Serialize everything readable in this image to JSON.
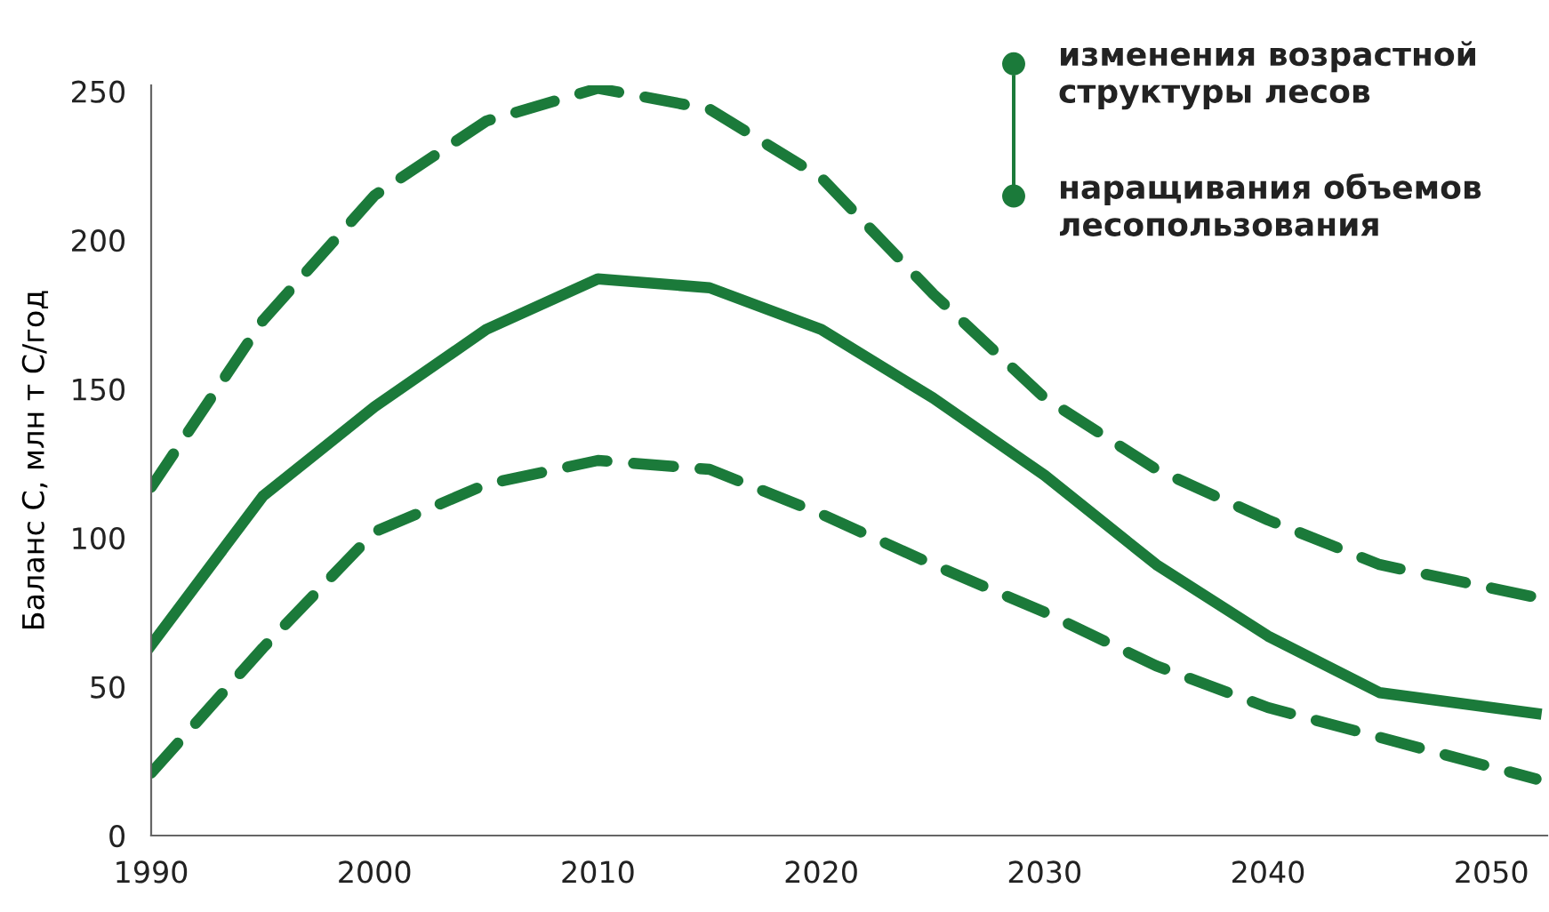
{
  "chart_data": {
    "type": "line",
    "ylabel": "Баланс С, млн т С/год",
    "x": [
      1990,
      1995,
      2000,
      2005,
      2010,
      2015,
      2020,
      2025,
      2030,
      2035,
      2040,
      2045,
      2052
    ],
    "series": [
      {
        "color": "#1b7a3a",
        "line_style": "dashed",
        "values": [
          117,
          173,
          215,
          240,
          251,
          244,
          221,
          182,
          147,
          123,
          106,
          91,
          80
        ]
      },
      {
        "color": "#1b7a3a",
        "line_style": "solid",
        "values": [
          64,
          114,
          144,
          170,
          187,
          184,
          170,
          147,
          121,
          91,
          67,
          48,
          41
        ]
      },
      {
        "color": "#1b7a3a",
        "line_style": "dashed",
        "values": [
          21,
          63,
          102,
          118,
          126,
          123,
          108,
          91,
          75,
          57,
          43,
          33,
          19
        ]
      }
    ],
    "xlim": [
      1990,
      2052.5
    ],
    "ylim": [
      0,
      252
    ],
    "xticks": [
      1990,
      2000,
      2010,
      2020,
      2030,
      2040,
      2050
    ],
    "yticks": [
      0,
      50,
      100,
      150,
      200,
      250
    ],
    "grid": false,
    "annotations": [
      "изменения возрастной\nструктуры лесов",
      "наращивания объемов\nлесопользования"
    ]
  }
}
